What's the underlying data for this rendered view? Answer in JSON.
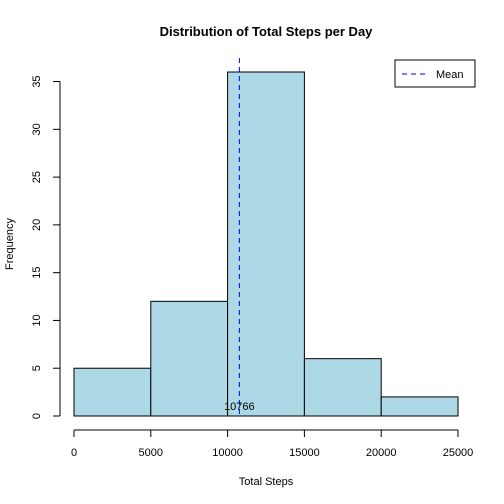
{
  "chart_data": {
    "type": "bar",
    "title": "Distribution of Total Steps per Day",
    "xlabel": "Total Steps",
    "ylabel": "Frequency",
    "bins": [
      {
        "from": 0,
        "to": 5000,
        "count": 5
      },
      {
        "from": 5000,
        "to": 10000,
        "count": 12
      },
      {
        "from": 10000,
        "to": 15000,
        "count": 36
      },
      {
        "from": 15000,
        "to": 20000,
        "count": 6
      },
      {
        "from": 20000,
        "to": 25000,
        "count": 2
      }
    ],
    "xlim": [
      0,
      25000
    ],
    "ylim": [
      0,
      36
    ],
    "x_ticks": [
      0,
      5000,
      10000,
      15000,
      20000,
      25000
    ],
    "y_ticks": [
      0,
      5,
      10,
      15,
      20,
      25,
      30,
      35
    ],
    "mean": {
      "value": 10766,
      "label": "10766",
      "color": "#0000ff"
    },
    "legend": {
      "position": "top-right",
      "entries": [
        {
          "label": "Mean",
          "style": "dashed",
          "color": "#0000ff"
        }
      ]
    },
    "bar_color": "#add8e6",
    "grid": false
  }
}
